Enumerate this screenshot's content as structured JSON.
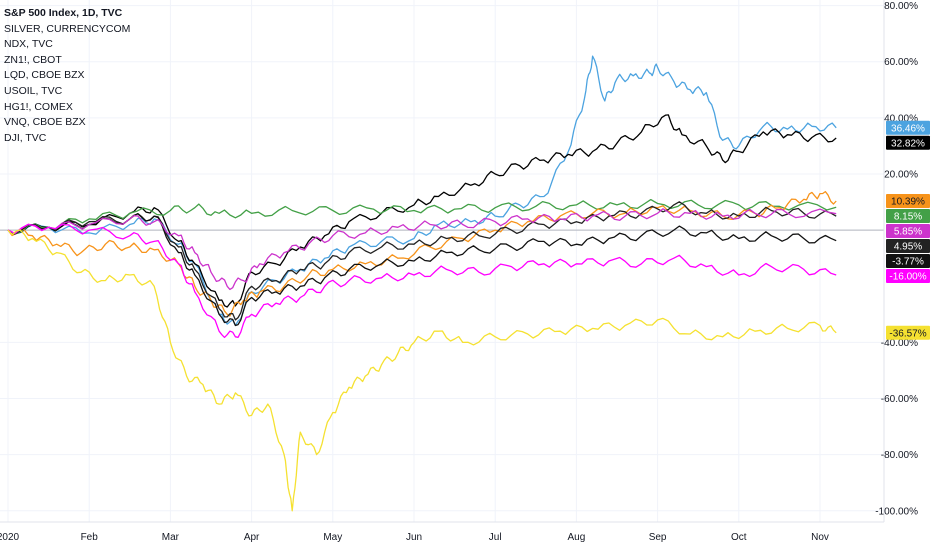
{
  "legend": [
    "S&P 500 Index, 1D, TVC",
    "SILVER, CURRENCYCOM",
    "NDX, TVC",
    "ZN1!, CBOT",
    "LQD, CBOE BZX",
    "USOIL, TVC",
    "HG1!, COMEX",
    "VNQ, CBOE BZX",
    "DJI, TVC"
  ],
  "chart_data": {
    "type": "line",
    "y_unit": "%",
    "ylim": [
      -104,
      82
    ],
    "y_ticks": [
      {
        "value": 80,
        "label": "80.00%"
      },
      {
        "value": 60,
        "label": "60.00%"
      },
      {
        "value": 40,
        "label": "40.00%"
      },
      {
        "value": 20,
        "label": "20.00%"
      },
      {
        "value": -40,
        "label": "-40.00%"
      },
      {
        "value": -60,
        "label": "-60.00%"
      },
      {
        "value": -80,
        "label": "-80.00%"
      },
      {
        "value": -100,
        "label": "-100.00%"
      }
    ],
    "x_ticks": [
      {
        "value": 0,
        "label": "2020"
      },
      {
        "value": 1,
        "label": "Feb"
      },
      {
        "value": 2,
        "label": "Mar"
      },
      {
        "value": 3,
        "label": "Apr"
      },
      {
        "value": 4,
        "label": "May"
      },
      {
        "value": 5,
        "label": "Jun"
      },
      {
        "value": 6,
        "label": "Jul"
      },
      {
        "value": 7,
        "label": "Aug"
      },
      {
        "value": 8,
        "label": "Sep"
      },
      {
        "value": 9,
        "label": "Oct"
      },
      {
        "value": 10,
        "label": "Nov"
      }
    ],
    "zero_line": 0,
    "grid": true,
    "series": [
      {
        "color": "#4ca3e0",
        "last_label": "36.46%",
        "points": [
          [
            0,
            0
          ],
          [
            0.5,
            1
          ],
          [
            1,
            -1
          ],
          [
            1.5,
            2
          ],
          [
            1.8,
            4
          ],
          [
            2.1,
            -5
          ],
          [
            2.3,
            -12
          ],
          [
            2.6,
            -30
          ],
          [
            2.8,
            -34
          ],
          [
            3.0,
            -22
          ],
          [
            3.3,
            -18
          ],
          [
            3.6,
            -14
          ],
          [
            3.9,
            -10
          ],
          [
            4.2,
            -6
          ],
          [
            4.6,
            -4
          ],
          [
            5.0,
            -3
          ],
          [
            5.3,
            2
          ],
          [
            5.7,
            3
          ],
          [
            6.0,
            5
          ],
          [
            6.3,
            9
          ],
          [
            6.6,
            12
          ],
          [
            6.9,
            28
          ],
          [
            7.1,
            47
          ],
          [
            7.2,
            62
          ],
          [
            7.35,
            46
          ],
          [
            7.5,
            54
          ],
          [
            7.7,
            55
          ],
          [
            7.9,
            56
          ],
          [
            8.0,
            58
          ],
          [
            8.2,
            53
          ],
          [
            8.4,
            50
          ],
          [
            8.6,
            49
          ],
          [
            8.8,
            32
          ],
          [
            9.0,
            30
          ],
          [
            9.3,
            37
          ],
          [
            9.6,
            36
          ],
          [
            9.9,
            37
          ],
          [
            10.2,
            36.46
          ]
        ]
      },
      {
        "color": "#000000",
        "last_label": "32.82%",
        "points": [
          [
            0,
            0
          ],
          [
            0.5,
            1
          ],
          [
            1,
            2
          ],
          [
            1.5,
            6
          ],
          [
            1.8,
            8
          ],
          [
            2.1,
            -4
          ],
          [
            2.3,
            -12
          ],
          [
            2.6,
            -25
          ],
          [
            2.8,
            -27
          ],
          [
            3.0,
            -15
          ],
          [
            3.3,
            -12
          ],
          [
            3.6,
            -6
          ],
          [
            3.9,
            -2
          ],
          [
            4.2,
            3
          ],
          [
            4.6,
            6
          ],
          [
            5.0,
            9
          ],
          [
            5.3,
            12
          ],
          [
            5.7,
            16
          ],
          [
            6.0,
            20
          ],
          [
            6.3,
            23
          ],
          [
            6.6,
            25
          ],
          [
            6.9,
            27
          ],
          [
            7.2,
            28
          ],
          [
            7.5,
            31
          ],
          [
            7.8,
            35
          ],
          [
            8.1,
            41
          ],
          [
            8.3,
            34
          ],
          [
            8.6,
            30
          ],
          [
            8.8,
            25
          ],
          [
            9.0,
            28
          ],
          [
            9.3,
            35
          ],
          [
            9.6,
            34
          ],
          [
            9.9,
            33
          ],
          [
            10.2,
            32.82
          ]
        ]
      },
      {
        "color": "#43a047",
        "last_label": "8.15%",
        "points": [
          [
            0,
            0
          ],
          [
            0.5,
            1
          ],
          [
            1,
            4
          ],
          [
            1.5,
            6
          ],
          [
            2.0,
            7
          ],
          [
            2.3,
            8
          ],
          [
            2.6,
            6
          ],
          [
            3.0,
            6
          ],
          [
            3.5,
            7
          ],
          [
            4.0,
            7
          ],
          [
            4.5,
            7.5
          ],
          [
            5.0,
            7
          ],
          [
            5.5,
            7.5
          ],
          [
            6.0,
            8
          ],
          [
            6.5,
            8.5
          ],
          [
            7.0,
            9
          ],
          [
            7.5,
            9
          ],
          [
            8.0,
            9.5
          ],
          [
            8.5,
            9
          ],
          [
            9.0,
            9
          ],
          [
            9.5,
            8.5
          ],
          [
            10.2,
            8.15
          ]
        ]
      },
      {
        "color": "#f7931a",
        "last_label": "10.39%",
        "points": [
          [
            0,
            0
          ],
          [
            0.3,
            -2
          ],
          [
            0.6,
            -5
          ],
          [
            0.9,
            -8
          ],
          [
            1.2,
            -5
          ],
          [
            1.5,
            -6
          ],
          [
            1.8,
            -7
          ],
          [
            2.1,
            -12
          ],
          [
            2.3,
            -20
          ],
          [
            2.5,
            -25
          ],
          [
            2.7,
            -30
          ],
          [
            2.9,
            -25
          ],
          [
            3.1,
            -22
          ],
          [
            3.4,
            -20
          ],
          [
            3.7,
            -16
          ],
          [
            4.0,
            -14
          ],
          [
            4.4,
            -12
          ],
          [
            4.8,
            -10
          ],
          [
            5.2,
            -6
          ],
          [
            5.6,
            -3
          ],
          [
            6.0,
            0
          ],
          [
            6.4,
            3
          ],
          [
            6.8,
            5
          ],
          [
            7.2,
            6
          ],
          [
            7.6,
            6
          ],
          [
            8.0,
            8
          ],
          [
            8.4,
            7
          ],
          [
            8.8,
            5
          ],
          [
            9.2,
            6
          ],
          [
            9.5,
            8
          ],
          [
            9.8,
            11
          ],
          [
            10.0,
            13
          ],
          [
            10.2,
            10.39
          ]
        ]
      },
      {
        "color": "#222222",
        "last_label": "4.95%",
        "points": [
          [
            0,
            0
          ],
          [
            0.5,
            1
          ],
          [
            1,
            3
          ],
          [
            1.5,
            4
          ],
          [
            1.8,
            5
          ],
          [
            2.1,
            -6
          ],
          [
            2.3,
            -14
          ],
          [
            2.6,
            -28
          ],
          [
            2.8,
            -32
          ],
          [
            3.0,
            -20
          ],
          [
            3.3,
            -18
          ],
          [
            3.6,
            -14
          ],
          [
            3.9,
            -12
          ],
          [
            4.2,
            -8
          ],
          [
            4.6,
            -6
          ],
          [
            5.0,
            -5
          ],
          [
            5.4,
            -3
          ],
          [
            5.8,
            -2
          ],
          [
            6.2,
            0
          ],
          [
            6.6,
            2
          ],
          [
            7.0,
            3
          ],
          [
            7.4,
            5
          ],
          [
            7.8,
            6
          ],
          [
            8.2,
            9
          ],
          [
            8.6,
            6
          ],
          [
            9.0,
            5
          ],
          [
            9.4,
            7
          ],
          [
            9.8,
            6
          ],
          [
            10.2,
            4.95
          ]
        ]
      },
      {
        "color": "#111111",
        "last_label": "-3.77%",
        "points": [
          [
            0,
            0
          ],
          [
            0.5,
            1
          ],
          [
            1,
            2
          ],
          [
            1.5,
            4
          ],
          [
            1.8,
            5
          ],
          [
            2.1,
            -8
          ],
          [
            2.3,
            -16
          ],
          [
            2.6,
            -30
          ],
          [
            2.8,
            -34
          ],
          [
            3.0,
            -24
          ],
          [
            3.3,
            -22
          ],
          [
            3.6,
            -20
          ],
          [
            3.9,
            -17
          ],
          [
            4.2,
            -14
          ],
          [
            4.6,
            -12
          ],
          [
            5.0,
            -11
          ],
          [
            5.4,
            -8
          ],
          [
            5.8,
            -7
          ],
          [
            6.2,
            -6
          ],
          [
            6.6,
            -4
          ],
          [
            7.0,
            -5
          ],
          [
            7.4,
            -3
          ],
          [
            7.8,
            -2
          ],
          [
            8.2,
            0
          ],
          [
            8.6,
            -1
          ],
          [
            9.0,
            -3
          ],
          [
            9.4,
            -2
          ],
          [
            9.8,
            -3
          ],
          [
            10.2,
            -3.77
          ]
        ]
      },
      {
        "color": "#cc33cc",
        "last_label": "5.85%",
        "points": [
          [
            0,
            0
          ],
          [
            0.5,
            1
          ],
          [
            1,
            2
          ],
          [
            1.5,
            4
          ],
          [
            1.8,
            3
          ],
          [
            2.1,
            -2
          ],
          [
            2.3,
            -8
          ],
          [
            2.5,
            -15
          ],
          [
            2.7,
            -20
          ],
          [
            2.9,
            -18
          ],
          [
            3.1,
            -12
          ],
          [
            3.4,
            -8
          ],
          [
            3.7,
            -5
          ],
          [
            4.0,
            -2
          ],
          [
            4.4,
            -1
          ],
          [
            4.8,
            1
          ],
          [
            5.2,
            2
          ],
          [
            5.6,
            2
          ],
          [
            6.0,
            3
          ],
          [
            6.4,
            4
          ],
          [
            6.8,
            4
          ],
          [
            7.2,
            5
          ],
          [
            7.6,
            5
          ],
          [
            8.0,
            6
          ],
          [
            8.4,
            6
          ],
          [
            8.8,
            5
          ],
          [
            9.2,
            6
          ],
          [
            9.6,
            6
          ],
          [
            10.2,
            5.85
          ]
        ]
      },
      {
        "color": "#ff00ff",
        "last_label": "-16.00%",
        "points": [
          [
            0,
            0
          ],
          [
            0.5,
            1
          ],
          [
            1,
            0
          ],
          [
            1.5,
            -2
          ],
          [
            1.8,
            -4
          ],
          [
            2.1,
            -12
          ],
          [
            2.3,
            -22
          ],
          [
            2.6,
            -36
          ],
          [
            2.8,
            -38
          ],
          [
            3.0,
            -30
          ],
          [
            3.3,
            -26
          ],
          [
            3.6,
            -24
          ],
          [
            3.9,
            -20
          ],
          [
            4.2,
            -18
          ],
          [
            4.6,
            -17
          ],
          [
            5.0,
            -16
          ],
          [
            5.4,
            -14
          ],
          [
            5.8,
            -15
          ],
          [
            6.2,
            -13
          ],
          [
            6.6,
            -12
          ],
          [
            7.0,
            -12
          ],
          [
            7.4,
            -11
          ],
          [
            7.8,
            -12
          ],
          [
            8.2,
            -10
          ],
          [
            8.6,
            -13
          ],
          [
            9.0,
            -16
          ],
          [
            9.4,
            -13
          ],
          [
            9.8,
            -14
          ],
          [
            10.2,
            -16.0
          ]
        ]
      },
      {
        "color": "#f5e131",
        "last_label": "-36.57%",
        "points": [
          [
            0,
            0
          ],
          [
            0.3,
            -3
          ],
          [
            0.6,
            -8
          ],
          [
            0.9,
            -15
          ],
          [
            1.2,
            -18
          ],
          [
            1.5,
            -16
          ],
          [
            1.8,
            -20
          ],
          [
            2.0,
            -40
          ],
          [
            2.2,
            -52
          ],
          [
            2.4,
            -55
          ],
          [
            2.6,
            -62
          ],
          [
            2.8,
            -58
          ],
          [
            3.0,
            -66
          ],
          [
            3.2,
            -62
          ],
          [
            3.4,
            -80
          ],
          [
            3.5,
            -100
          ],
          [
            3.6,
            -72
          ],
          [
            3.8,
            -80
          ],
          [
            4.0,
            -65
          ],
          [
            4.2,
            -56
          ],
          [
            4.4,
            -52
          ],
          [
            4.6,
            -48
          ],
          [
            4.8,
            -44
          ],
          [
            5.0,
            -40
          ],
          [
            5.3,
            -36
          ],
          [
            5.6,
            -40
          ],
          [
            6.0,
            -38
          ],
          [
            6.4,
            -37
          ],
          [
            6.8,
            -36
          ],
          [
            7.2,
            -35
          ],
          [
            7.6,
            -34
          ],
          [
            8.0,
            -32
          ],
          [
            8.4,
            -37
          ],
          [
            8.8,
            -38
          ],
          [
            9.2,
            -36
          ],
          [
            9.6,
            -35
          ],
          [
            10.0,
            -34
          ],
          [
            10.2,
            -36.57
          ]
        ]
      }
    ]
  }
}
